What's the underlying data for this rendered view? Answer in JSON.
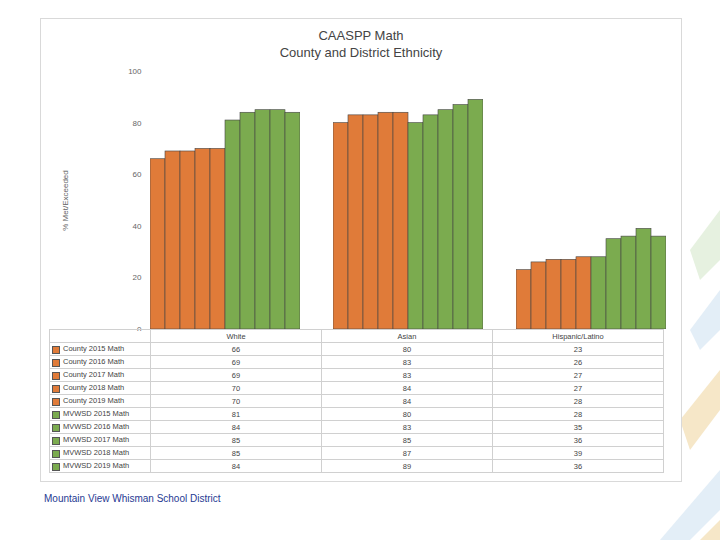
{
  "chart_data": {
    "type": "bar",
    "title": "CAASPP Math",
    "subtitle": "County and District Ethnicity",
    "ylabel": "% Met/Exceeded",
    "categories": [
      "White",
      "Asian",
      "Hispanic/Latino"
    ],
    "series": [
      {
        "name": "County 2015 Math",
        "color": "#e07b39",
        "values": [
          66,
          80,
          23
        ]
      },
      {
        "name": "County 2016 Math",
        "color": "#e07b39",
        "values": [
          69,
          83,
          26
        ]
      },
      {
        "name": "County 2017 Math",
        "color": "#e07b39",
        "values": [
          69,
          83,
          27
        ]
      },
      {
        "name": "County 2018 Math",
        "color": "#e07b39",
        "values": [
          70,
          84,
          27
        ]
      },
      {
        "name": "County 2019 Math",
        "color": "#e07b39",
        "values": [
          70,
          84,
          28
        ]
      },
      {
        "name": "MVWSD 2015 Math",
        "color": "#7bab4f",
        "values": [
          81,
          80,
          28
        ]
      },
      {
        "name": "MVWSD 2016 Math",
        "color": "#7bab4f",
        "values": [
          84,
          83,
          35
        ]
      },
      {
        "name": "MVWSD 2017 Math",
        "color": "#7bab4f",
        "values": [
          85,
          85,
          36
        ]
      },
      {
        "name": "MVWSD 2018 Math",
        "color": "#7bab4f",
        "values": [
          85,
          87,
          39
        ]
      },
      {
        "name": "MVWSD 2019 Math",
        "color": "#7bab4f",
        "values": [
          84,
          89,
          36
        ]
      }
    ],
    "ylim": [
      0,
      100
    ],
    "yticks": [
      0,
      20,
      40,
      60,
      80,
      100
    ],
    "grid": false
  },
  "footer": "Mountain View Whisman School District"
}
